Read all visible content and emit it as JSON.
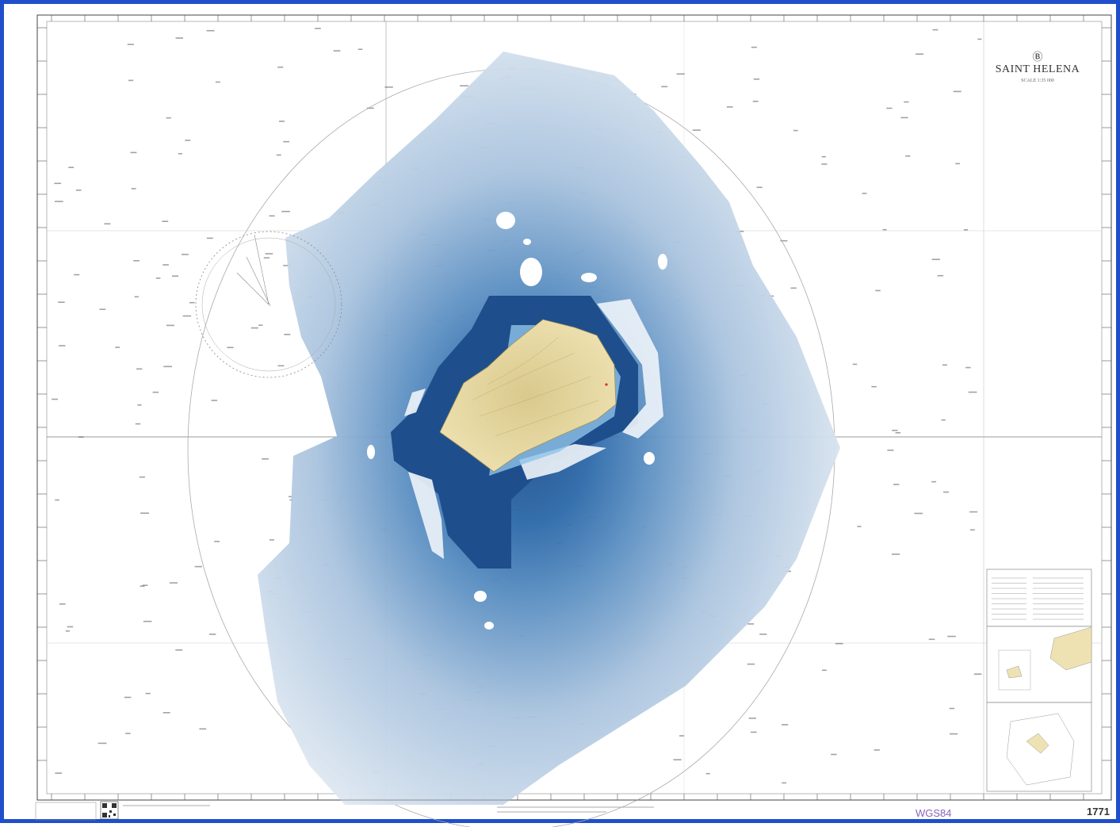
{
  "chart": {
    "crest_symbol": "Ⓑ",
    "title": "SAINT HELENA",
    "scale_text": "SCALE 1:35 000",
    "subtitle": "",
    "datum": "WGS84",
    "edition": "",
    "chart_number": "1771",
    "legend_title": "",
    "colors": {
      "border": "#1f4fc9",
      "deep_water": "#1e4f8c",
      "bathymetry_mid": "#5b8fc2",
      "bathymetry_light": "#dfe8f1",
      "land": "#ecdca4",
      "datum_text": "#8a64b8"
    },
    "icons": {
      "compass_rose": "compass-rose-icon",
      "qr_code": "qr-code-icon"
    }
  }
}
